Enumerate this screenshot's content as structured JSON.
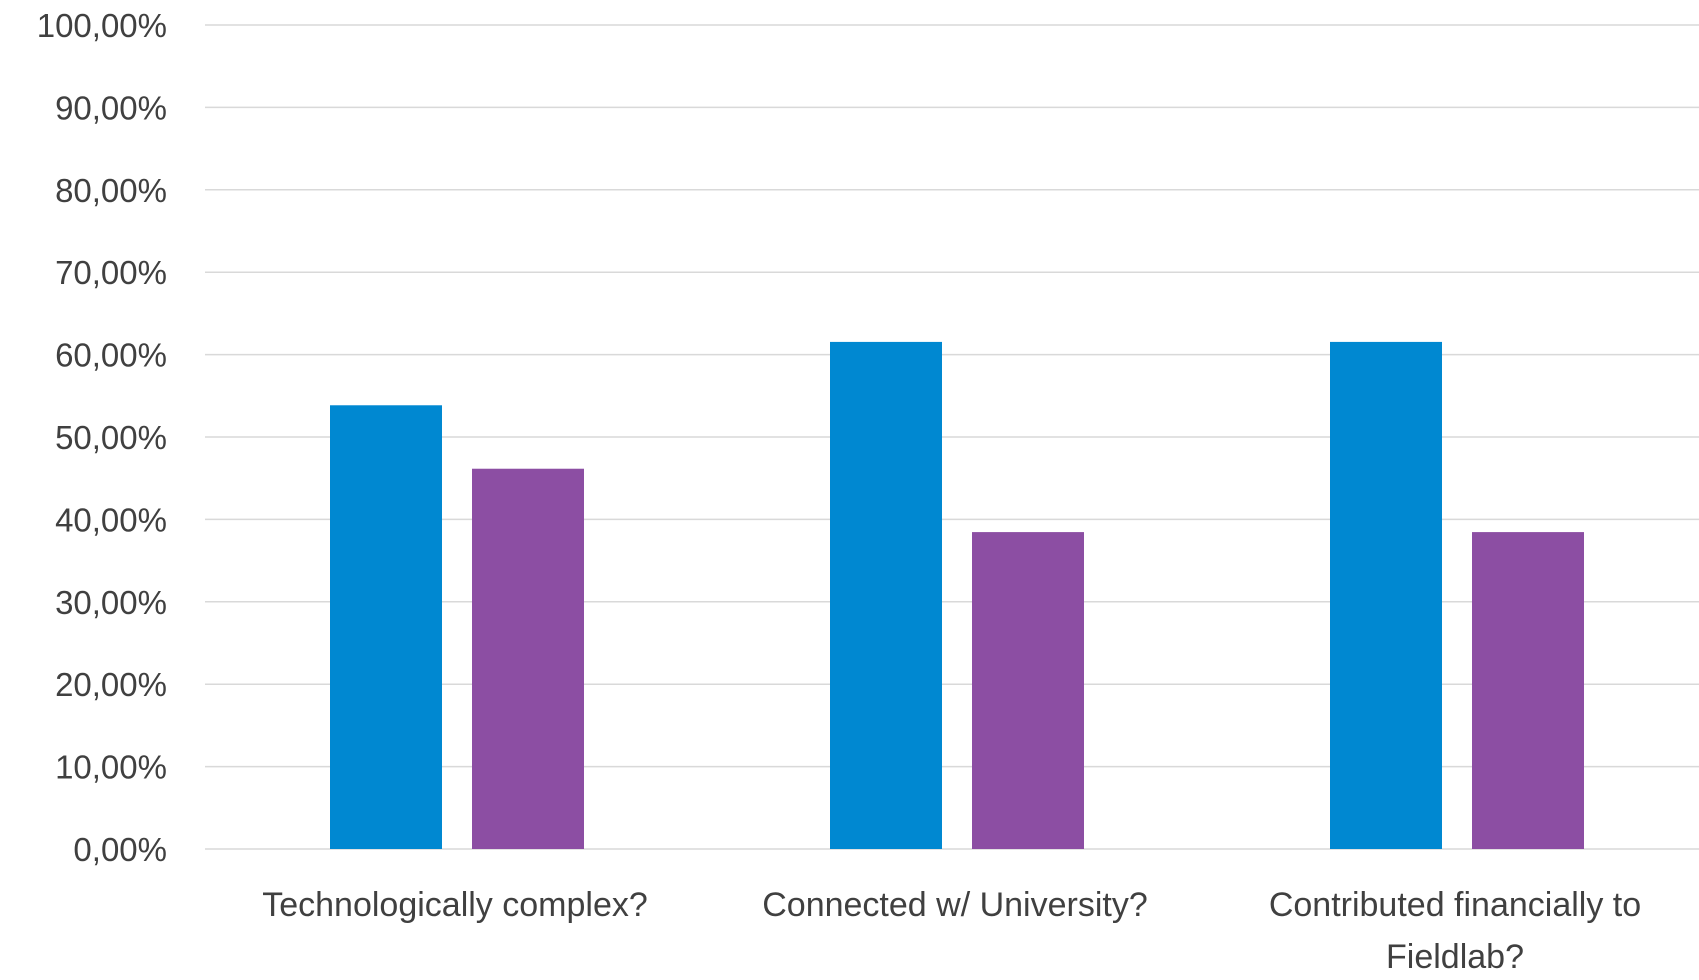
{
  "chart_data": {
    "type": "bar",
    "categories": [
      [
        "Technologically complex?"
      ],
      [
        "Connected w/ University?"
      ],
      [
        "Contributed financially to",
        "Fieldlab?"
      ]
    ],
    "series": [
      {
        "values": [
          53.85,
          61.54,
          61.54
        ]
      },
      {
        "values": [
          46.15,
          38.46,
          38.46
        ]
      }
    ],
    "ylim": [
      0,
      100
    ],
    "yticks": [
      "0,00%",
      "10,00%",
      "20,00%",
      "30,00%",
      "40,00%",
      "50,00%",
      "60,00%",
      "70,00%",
      "80,00%",
      "90,00%",
      "100,00%"
    ],
    "grid": true,
    "legend": "none"
  },
  "colors": {
    "series": [
      "#0088d1",
      "#8c4ea3"
    ],
    "grid": "#d9d9d9",
    "text": "#404040"
  }
}
